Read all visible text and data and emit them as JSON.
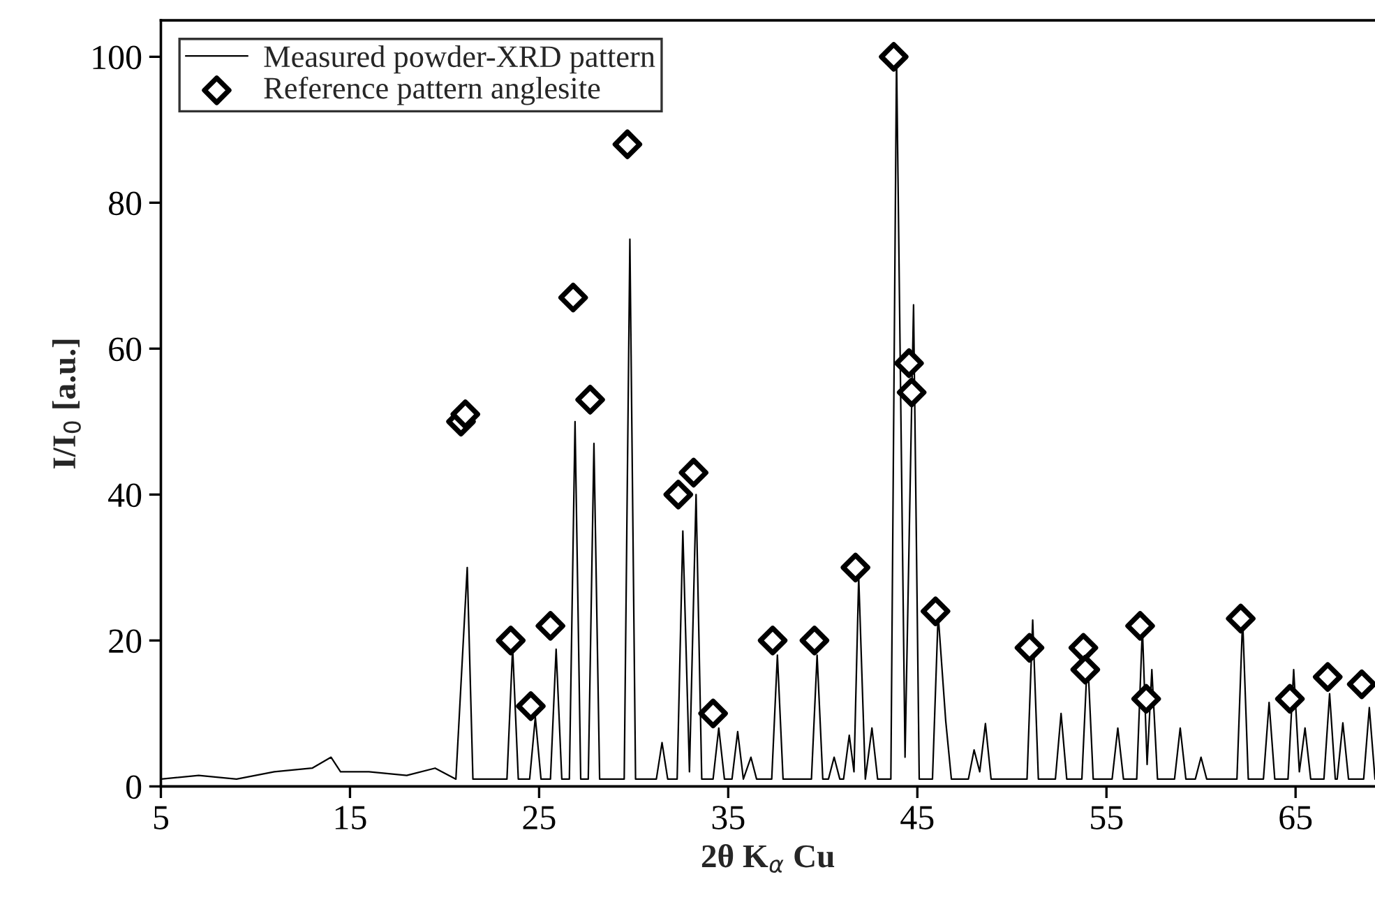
{
  "chart_data": {
    "type": "line",
    "xlabel": "2θ K$_{α}$ Cu",
    "ylabel": "I/I$_{0}$ [a.u.]",
    "xlim": [
      5,
      69.2
    ],
    "xticks": [
      5,
      15,
      25,
      35,
      45,
      55,
      65
    ],
    "ylim": [
      0,
      105
    ],
    "yticks": [
      0,
      20,
      40,
      60,
      80,
      100
    ],
    "grid": false,
    "legend": "top left",
    "series": [
      {
        "name": "Measured powder-XRD pattern",
        "color": "#000000",
        "marker": "none",
        "line_style": "solid",
        "x": [
          5,
          7,
          9,
          11,
          13,
          14,
          14.5,
          16,
          18,
          19.5,
          20.6,
          21.2,
          21.5,
          23.3,
          23.6,
          23.9,
          24.5,
          24.8,
          25.1,
          25.6,
          25.9,
          26.2,
          26.6,
          26.9,
          27.2,
          27.6,
          27.9,
          28.2,
          29.5,
          29.8,
          30.1,
          31.2,
          31.5,
          31.8,
          32.3,
          32.6,
          32.95,
          33.3,
          33.6,
          34.2,
          34.5,
          34.8,
          35.2,
          35.5,
          35.8,
          36.2,
          36.5,
          37.3,
          37.6,
          37.9,
          39.4,
          39.7,
          40.0,
          40.3,
          40.6,
          40.9,
          41.1,
          41.4,
          41.65,
          41.9,
          42.25,
          42.6,
          42.9,
          43.6,
          43.9,
          44.35,
          44.8,
          45.1,
          45.8,
          46.1,
          46.5,
          46.8,
          47.7,
          48.0,
          48.3,
          48.6,
          48.9,
          50.8,
          51.1,
          51.4,
          52.3,
          52.6,
          52.9,
          53.7,
          54.0,
          54.3,
          55.3,
          55.6,
          55.9,
          56.6,
          56.9,
          57.15,
          57.4,
          57.7,
          58.6,
          58.9,
          59.2,
          59.7,
          60.0,
          60.3,
          61.9,
          62.2,
          62.5,
          63.3,
          63.6,
          63.9,
          64.6,
          64.9,
          65.2,
          65.5,
          65.8,
          66.5,
          66.8,
          67.1,
          67.2,
          67.5,
          67.8,
          68.6,
          68.9,
          69.2
        ],
        "values": [
          1,
          1.5,
          1,
          2,
          2.5,
          4,
          2,
          2,
          1.5,
          2.5,
          1,
          30,
          1,
          1,
          19,
          1,
          1,
          9.5,
          1,
          1,
          18.8,
          1,
          1,
          50,
          1,
          1,
          47,
          1,
          1,
          75,
          1,
          1,
          6,
          1,
          1,
          35,
          2,
          40,
          1,
          1,
          8,
          1,
          1,
          7.5,
          1,
          4,
          1,
          1,
          18,
          1,
          1,
          18,
          1,
          1,
          4,
          1,
          1,
          7,
          2,
          28.7,
          1,
          8,
          1,
          1,
          100,
          4,
          66,
          1,
          1,
          23.6,
          9,
          1,
          1,
          5,
          2,
          8.6,
          1,
          1,
          22.8,
          1,
          1,
          10,
          1,
          1,
          18,
          1,
          1,
          8,
          1,
          1,
          21.7,
          3,
          16,
          1,
          1,
          8,
          1,
          1,
          4,
          1,
          1,
          23,
          1,
          1,
          11.5,
          1,
          1,
          16,
          2,
          8,
          1,
          1,
          12.7,
          1,
          1,
          8.7,
          1,
          1,
          10.8,
          1
        ]
      },
      {
        "name": "Reference pattern anglesite",
        "type": "scatter",
        "color": "#000000",
        "marker": "diamond",
        "x": [
          20.87,
          21.1,
          23.5,
          24.56,
          25.6,
          26.8,
          27.7,
          29.67,
          32.36,
          33.17,
          34.2,
          37.35,
          39.56,
          41.73,
          43.75,
          44.56,
          44.7,
          45.96,
          50.93,
          53.78,
          53.88,
          56.78,
          57.1,
          62.1,
          64.7,
          66.7,
          68.5
        ],
        "values": [
          50,
          51,
          20,
          11,
          22,
          67,
          53,
          88,
          40,
          43,
          10,
          20,
          20,
          30,
          100,
          58,
          54,
          24,
          19,
          19,
          16,
          22,
          12,
          23,
          12,
          15,
          14
        ]
      }
    ]
  }
}
